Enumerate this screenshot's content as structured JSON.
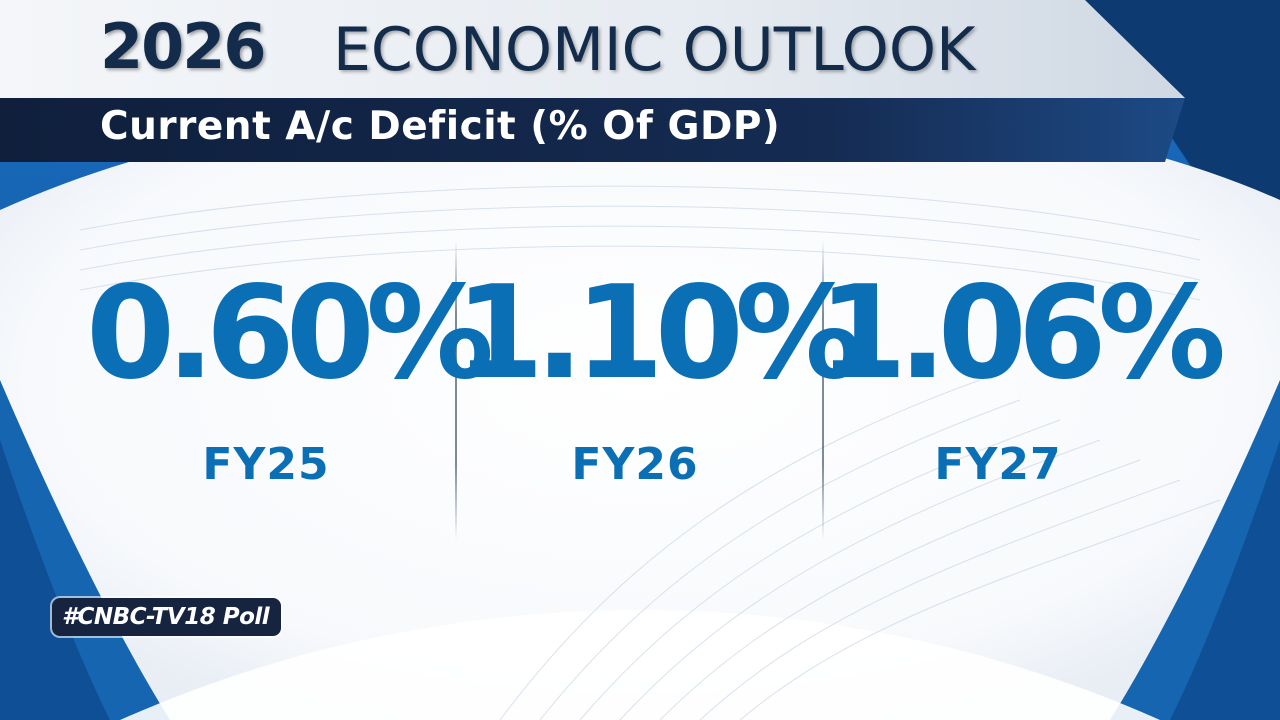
{
  "header": {
    "year": "2026",
    "title": "ECONOMIC OUTLOOK",
    "subtitle": "Current A/c Deficit (% Of GDP)"
  },
  "stats": [
    {
      "value": "0.60%",
      "label": "FY25"
    },
    {
      "value": "1.10%",
      "label": "FY26"
    },
    {
      "value": "1.06%",
      "label": "FY27"
    }
  ],
  "badge": {
    "text": "#CNBC-TV18 Poll"
  },
  "colors": {
    "navy": "#142c4c",
    "accent_blue": "#0b6fb6",
    "frame_blue": "#1565b0",
    "badge_bg": "#16243f"
  }
}
